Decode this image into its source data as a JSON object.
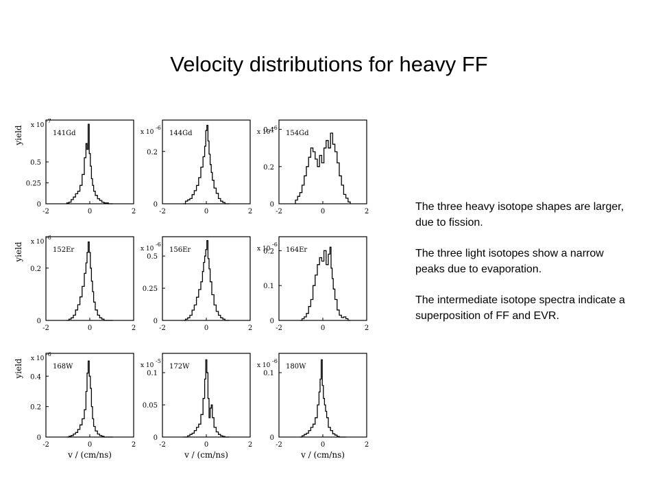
{
  "slide": {
    "title": "Velocity distributions for heavy FF",
    "notes": [
      "The three heavy isotope shapes are larger,  due to fission.",
      "The three light isotopes show a narrow peaks due to evaporation.",
      "The intermediate isotope spectra indicate a superposition of FF and EVR."
    ]
  },
  "chart_data": [
    {
      "type": "bar",
      "title": "",
      "label": "141Gd",
      "xlabel": "",
      "ylabel": "yield",
      "xlim": [
        -2,
        2
      ],
      "xticks": [
        "-2",
        "0",
        "2"
      ],
      "ylim": [
        0,
        1.0
      ],
      "yticks": [
        {
          "v": 0,
          "label": "0"
        },
        {
          "v": 0.25,
          "label": "0.25"
        },
        {
          "v": 0.5,
          "label": "0.5"
        }
      ],
      "multiplier": "x 10",
      "exponent": "-7",
      "x": [
        -1.0,
        -0.9,
        -0.8,
        -0.7,
        -0.6,
        -0.5,
        -0.4,
        -0.3,
        -0.2,
        -0.15,
        -0.1,
        -0.05,
        0.0,
        0.05,
        0.1,
        0.15,
        0.2,
        0.3,
        0.4,
        0.5,
        0.6,
        0.7,
        0.8,
        0.9,
        1.0
      ],
      "values": [
        0.01,
        0.02,
        0.05,
        0.08,
        0.12,
        0.15,
        0.22,
        0.35,
        0.55,
        0.72,
        0.65,
        0.95,
        0.6,
        0.45,
        0.3,
        0.22,
        0.15,
        0.1,
        0.06,
        0.04,
        0.02,
        0.01,
        0.01,
        0.0,
        0.0
      ]
    },
    {
      "type": "bar",
      "title": "",
      "label": "144Gd",
      "xlabel": "",
      "ylabel": "",
      "xlim": [
        -2,
        2
      ],
      "xticks": [
        "-2",
        "0",
        "2"
      ],
      "ylim": [
        0,
        0.32
      ],
      "yticks": [
        {
          "v": 0,
          "label": "0"
        },
        {
          "v": 0.2,
          "label": "0.2"
        }
      ],
      "multiplier": "x 10",
      "exponent": "-6",
      "x": [
        -1.0,
        -0.9,
        -0.8,
        -0.7,
        -0.6,
        -0.5,
        -0.4,
        -0.3,
        -0.2,
        -0.1,
        -0.05,
        0.0,
        0.05,
        0.1,
        0.15,
        0.2,
        0.25,
        0.3,
        0.4,
        0.5,
        0.6,
        0.7,
        0.8,
        0.9,
        1.0
      ],
      "values": [
        0.0,
        0.01,
        0.015,
        0.02,
        0.035,
        0.05,
        0.07,
        0.1,
        0.14,
        0.18,
        0.22,
        0.28,
        0.3,
        0.24,
        0.19,
        0.15,
        0.12,
        0.09,
        0.06,
        0.04,
        0.02,
        0.01,
        0.005,
        0.0,
        0.0
      ]
    },
    {
      "type": "bar",
      "title": "",
      "label": "154Gd",
      "xlabel": "",
      "ylabel": "",
      "xlim": [
        -2,
        2
      ],
      "xticks": [
        "-2",
        "0",
        "2"
      ],
      "ylim": [
        0,
        0.45
      ],
      "yticks": [
        {
          "v": 0,
          "label": "0"
        },
        {
          "v": 0.2,
          "label": "0.2"
        },
        {
          "v": 0.4,
          "label": "0.4"
        }
      ],
      "multiplier": "x 10",
      "exponent": "-6",
      "x": [
        -1.2,
        -1.1,
        -1.0,
        -0.9,
        -0.8,
        -0.7,
        -0.6,
        -0.5,
        -0.4,
        -0.3,
        -0.2,
        -0.1,
        0.0,
        0.1,
        0.2,
        0.3,
        0.4,
        0.5,
        0.6,
        0.7,
        0.8,
        0.9,
        1.0,
        1.1,
        1.2
      ],
      "values": [
        0.02,
        0.04,
        0.06,
        0.1,
        0.15,
        0.2,
        0.25,
        0.3,
        0.28,
        0.24,
        0.2,
        0.26,
        0.22,
        0.3,
        0.34,
        0.3,
        0.38,
        0.32,
        0.28,
        0.22,
        0.15,
        0.1,
        0.05,
        0.03,
        0.01
      ]
    },
    {
      "type": "bar",
      "title": "",
      "label": "152Er",
      "xlabel": "",
      "ylabel": "yield",
      "xlim": [
        -2,
        2
      ],
      "xticks": [
        "-2",
        "0",
        "2"
      ],
      "ylim": [
        0,
        0.32
      ],
      "yticks": [
        {
          "v": 0,
          "label": "0"
        },
        {
          "v": 0.2,
          "label": "0.2"
        }
      ],
      "multiplier": "x 10",
      "exponent": "-6",
      "x": [
        -1.0,
        -0.9,
        -0.8,
        -0.7,
        -0.6,
        -0.5,
        -0.4,
        -0.3,
        -0.2,
        -0.15,
        -0.1,
        -0.05,
        0.0,
        0.05,
        0.1,
        0.15,
        0.2,
        0.3,
        0.4,
        0.5,
        0.6,
        0.7,
        0.8,
        0.9,
        1.0
      ],
      "values": [
        0.0,
        0.005,
        0.01,
        0.02,
        0.04,
        0.06,
        0.09,
        0.13,
        0.18,
        0.22,
        0.26,
        0.3,
        0.26,
        0.2,
        0.15,
        0.11,
        0.07,
        0.04,
        0.02,
        0.01,
        0.005,
        0.0,
        0.0,
        0.0,
        0.0
      ]
    },
    {
      "type": "bar",
      "title": "",
      "label": "156Er",
      "xlabel": "",
      "ylabel": "",
      "xlim": [
        -2,
        2
      ],
      "xticks": [
        "-2",
        "0",
        "2"
      ],
      "ylim": [
        0,
        0.65
      ],
      "yticks": [
        {
          "v": 0,
          "label": "0"
        },
        {
          "v": 0.25,
          "label": "0.25"
        },
        {
          "v": 0.5,
          "label": "0.5"
        }
      ],
      "multiplier": "x 10",
      "exponent": "-6",
      "x": [
        -1.0,
        -0.9,
        -0.8,
        -0.7,
        -0.6,
        -0.5,
        -0.4,
        -0.3,
        -0.2,
        -0.15,
        -0.1,
        -0.05,
        0.0,
        0.05,
        0.1,
        0.15,
        0.2,
        0.3,
        0.4,
        0.5,
        0.6,
        0.7,
        0.8,
        0.9,
        1.0
      ],
      "values": [
        0.0,
        0.01,
        0.02,
        0.04,
        0.08,
        0.12,
        0.18,
        0.24,
        0.3,
        0.38,
        0.45,
        0.5,
        0.55,
        0.62,
        0.48,
        0.4,
        0.3,
        0.2,
        0.12,
        0.07,
        0.04,
        0.02,
        0.01,
        0.0,
        0.0
      ]
    },
    {
      "type": "bar",
      "title": "",
      "label": "164Er",
      "xlabel": "",
      "ylabel": "",
      "xlim": [
        -2,
        2
      ],
      "xticks": [
        "-2",
        "0",
        "2"
      ],
      "ylim": [
        0,
        0.24
      ],
      "yticks": [
        {
          "v": 0,
          "label": "0"
        },
        {
          "v": 0.1,
          "label": "0.1"
        },
        {
          "v": 0.2,
          "label": "0.2"
        }
      ],
      "multiplier": "x 10",
      "exponent": "-6",
      "x": [
        -1.0,
        -0.9,
        -0.8,
        -0.7,
        -0.6,
        -0.5,
        -0.4,
        -0.3,
        -0.2,
        -0.1,
        0.0,
        0.1,
        0.2,
        0.3,
        0.35,
        0.4,
        0.45,
        0.5,
        0.6,
        0.7,
        0.8,
        0.9,
        1.0,
        1.1,
        1.2
      ],
      "values": [
        0.0,
        0.005,
        0.01,
        0.02,
        0.04,
        0.06,
        0.1,
        0.13,
        0.16,
        0.18,
        0.17,
        0.2,
        0.16,
        0.19,
        0.21,
        0.15,
        0.12,
        0.09,
        0.06,
        0.03,
        0.015,
        0.008,
        0.01,
        0.005,
        0.0
      ]
    },
    {
      "type": "bar",
      "title": "",
      "label": "168W",
      "xlabel": "v / (cm/ns)",
      "ylabel": "yield",
      "xlim": [
        -2,
        2
      ],
      "xticks": [
        "-2",
        "0",
        "2"
      ],
      "ylim": [
        0,
        0.55
      ],
      "yticks": [
        {
          "v": 0,
          "label": "0"
        },
        {
          "v": 0.2,
          "label": "0.2"
        },
        {
          "v": 0.4,
          "label": "0.4"
        }
      ],
      "multiplier": "x 10",
      "exponent": "-6",
      "x": [
        -1.0,
        -0.9,
        -0.8,
        -0.7,
        -0.6,
        -0.5,
        -0.4,
        -0.3,
        -0.2,
        -0.15,
        -0.1,
        -0.05,
        0.0,
        0.05,
        0.1,
        0.15,
        0.2,
        0.3,
        0.4,
        0.5,
        0.6,
        0.7,
        0.8,
        0.9,
        1.0
      ],
      "values": [
        0.0,
        0.005,
        0.01,
        0.02,
        0.03,
        0.05,
        0.08,
        0.12,
        0.18,
        0.3,
        0.42,
        0.5,
        0.4,
        0.32,
        0.2,
        0.12,
        0.07,
        0.04,
        0.02,
        0.01,
        0.005,
        0.0,
        0.0,
        0.0,
        0.0
      ]
    },
    {
      "type": "bar",
      "title": "",
      "label": "172W",
      "xlabel": "v / (cm/ns)",
      "ylabel": "",
      "xlim": [
        -2,
        2
      ],
      "xticks": [
        "-2",
        "0",
        "2"
      ],
      "ylim": [
        0,
        0.13
      ],
      "yticks": [
        {
          "v": 0,
          "label": "0"
        },
        {
          "v": 0.05,
          "label": "0.05"
        },
        {
          "v": 0.1,
          "label": "0.1"
        }
      ],
      "multiplier": "x 10",
      "exponent": "-5",
      "x": [
        -1.0,
        -0.9,
        -0.8,
        -0.7,
        -0.6,
        -0.5,
        -0.4,
        -0.3,
        -0.2,
        -0.1,
        -0.05,
        0.0,
        0.05,
        0.1,
        0.15,
        0.2,
        0.25,
        0.3,
        0.4,
        0.5,
        0.6,
        0.7,
        0.8,
        0.9,
        1.0
      ],
      "values": [
        0.0,
        0.0,
        0.002,
        0.004,
        0.006,
        0.01,
        0.015,
        0.02,
        0.035,
        0.06,
        0.09,
        0.12,
        0.1,
        0.06,
        0.03,
        0.045,
        0.05,
        0.03,
        0.015,
        0.008,
        0.004,
        0.002,
        0.001,
        0.0,
        0.0
      ]
    },
    {
      "type": "bar",
      "title": "",
      "label": "180W",
      "xlabel": "v / (cm/ns)",
      "ylabel": "",
      "xlim": [
        -2,
        2
      ],
      "xticks": [
        "-2",
        "0",
        "2"
      ],
      "ylim": [
        0,
        0.13
      ],
      "yticks": [
        {
          "v": 0,
          "label": "0"
        },
        {
          "v": 0.1,
          "label": "0.1"
        }
      ],
      "multiplier": "x 10",
      "exponent": "-6",
      "x": [
        -1.0,
        -0.9,
        -0.8,
        -0.7,
        -0.6,
        -0.5,
        -0.4,
        -0.3,
        -0.2,
        -0.15,
        -0.1,
        -0.05,
        0.0,
        0.05,
        0.1,
        0.15,
        0.2,
        0.3,
        0.4,
        0.5,
        0.6,
        0.7,
        0.8,
        0.9,
        1.0
      ],
      "values": [
        0.0,
        0.002,
        0.004,
        0.006,
        0.01,
        0.015,
        0.02,
        0.03,
        0.05,
        0.07,
        0.09,
        0.12,
        0.08,
        0.06,
        0.05,
        0.04,
        0.03,
        0.015,
        0.01,
        0.005,
        0.003,
        0.001,
        0.0,
        0.0,
        0.0
      ]
    }
  ]
}
